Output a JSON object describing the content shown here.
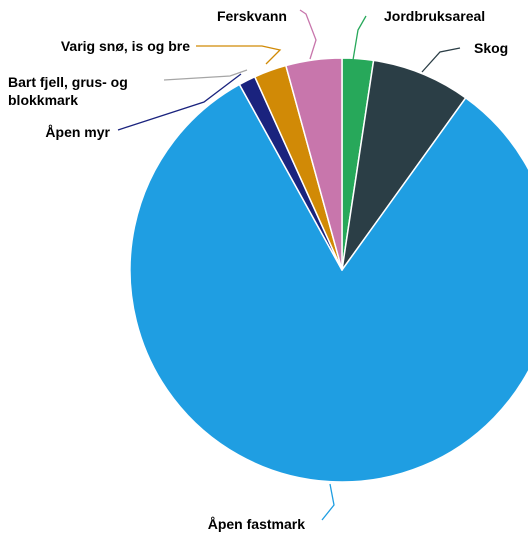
{
  "chart_data": {
    "type": "pie",
    "title": "",
    "slices": [
      {
        "label": "Jordbruksareal",
        "value": 2.4,
        "color": "#27a85a"
      },
      {
        "label": "Skog",
        "value": 7.6,
        "color": "#2b3e46"
      },
      {
        "label": "Åpen fastmark",
        "value": 82.7,
        "color": "#1f9ee2"
      },
      {
        "label": "Åpen myr",
        "value": 1.3,
        "color": "#1a237e"
      },
      {
        "label": "Bart fjell, grus- og blokkmark",
        "value": 0.0,
        "color": "#a6a6a6"
      },
      {
        "label": "Varig snø, is og bre",
        "value": 2.5,
        "color": "#d18a06"
      },
      {
        "label": "Ferskvann",
        "value": 4.3,
        "color": "#c876ac"
      }
    ],
    "legend": "callouts"
  }
}
